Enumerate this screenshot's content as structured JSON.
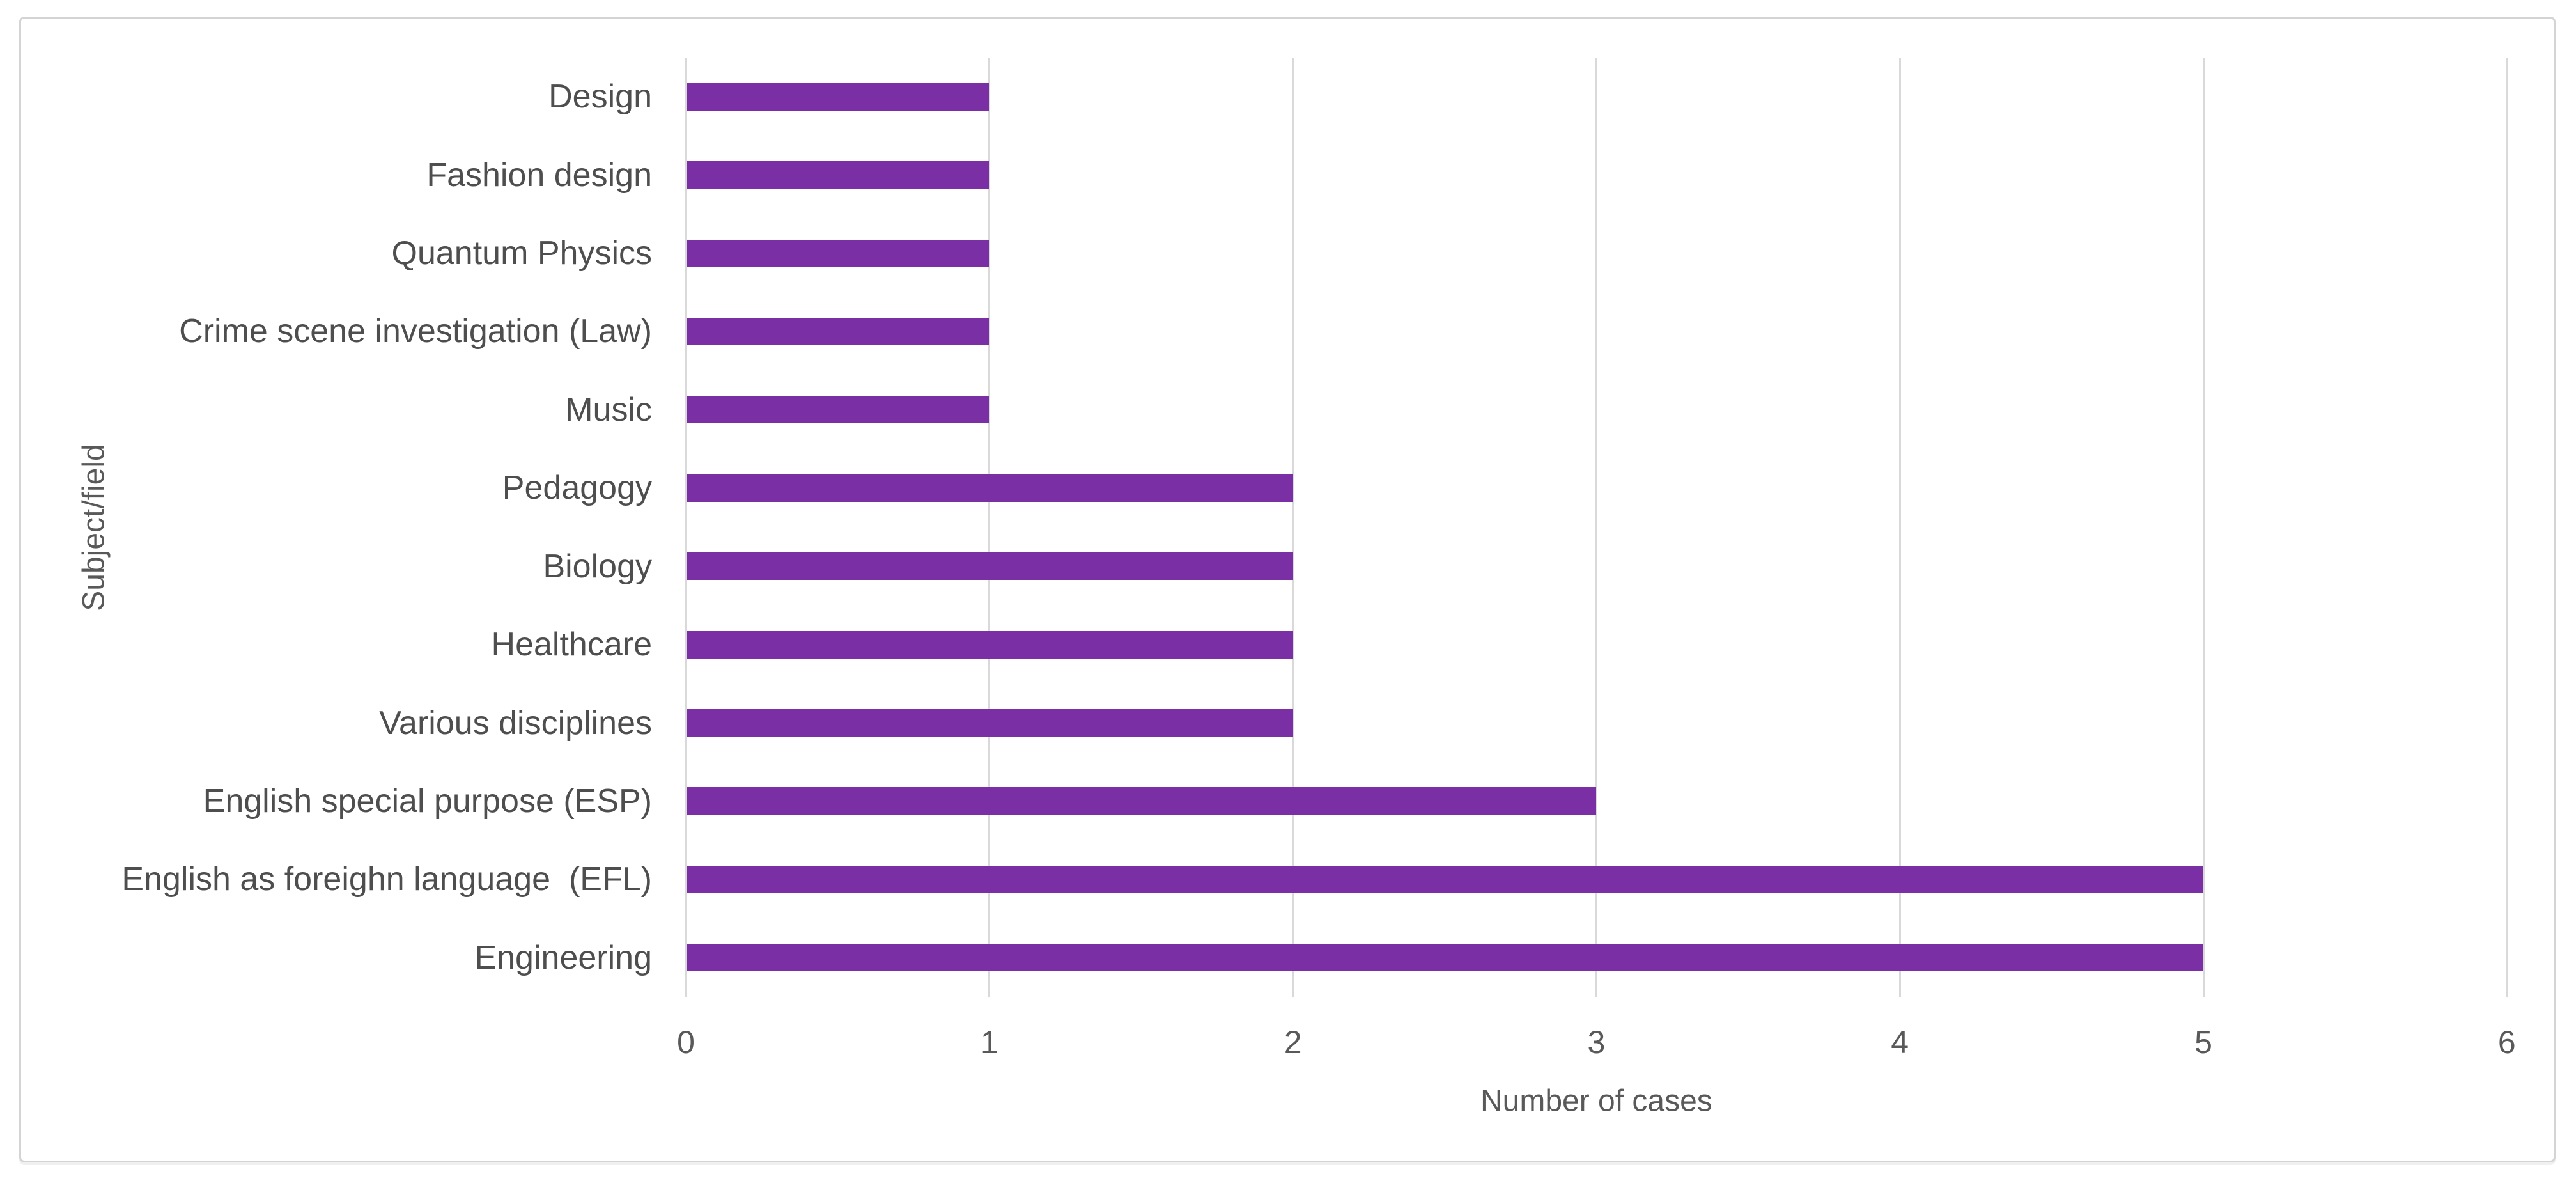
{
  "figure": {
    "background": "#ffffff",
    "frame_border_color": "#d4d4d4"
  },
  "chart_data": {
    "type": "bar",
    "orientation": "horizontal",
    "title": "",
    "xlabel": "Number of cases",
    "ylabel": "Subject/field",
    "categories": [
      "Design",
      "Fashion design",
      "Quantum Physics",
      "Crime scene investigation (Law)",
      "Music",
      "Pedagogy",
      "Biology",
      "Healthcare",
      "Various disciplines",
      "English special purpose (ESP)",
      "English as foreighn language  (EFL)",
      "Engineering"
    ],
    "values": [
      1,
      1,
      1,
      1,
      1,
      2,
      2,
      2,
      2,
      3,
      5,
      5
    ],
    "xlim": [
      0,
      6
    ],
    "xticks": [
      "0",
      "1",
      "2",
      "3",
      "4",
      "5",
      "6"
    ],
    "grid": "vertical",
    "legend": "none",
    "bar_color": "#7b2fa5",
    "gridline_color": "#d9d9d9",
    "tick_label_color": "#595959",
    "category_label_color": "#4e4e4e",
    "axis_title_color": "#595959"
  }
}
